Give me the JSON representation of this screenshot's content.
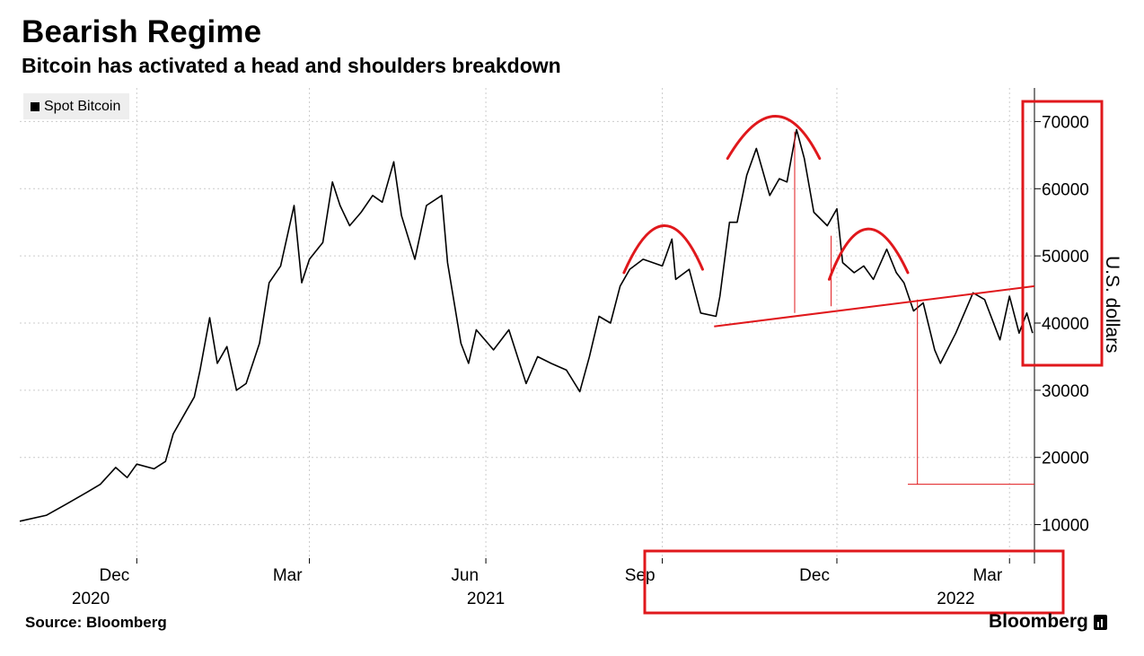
{
  "header": {
    "title": "Bearish Regime",
    "subtitle": "Bitcoin has activated a head and shoulders breakdown"
  },
  "footer": {
    "source": "Source: Bloomberg",
    "brand": "Bloomberg"
  },
  "colors": {
    "price_line": "#000000",
    "annotation": "#e0181c",
    "gridline": "#cccccc",
    "legend_bg": "#eeeeee"
  },
  "chart_data": {
    "type": "line",
    "title": "Bearish Regime",
    "subtitle": "Bitcoin has activated a head and shoulders breakdown",
    "ylabel": "U.S. dollars",
    "xlabel": "",
    "ylim": [
      5000,
      75000
    ],
    "yticks": [
      10000,
      20000,
      30000,
      40000,
      50000,
      60000,
      70000
    ],
    "x_start": "2020-10-01",
    "x_end": "2022-03-14",
    "month_ticks": [
      {
        "label": "Dec",
        "date": "2020-12-01"
      },
      {
        "label": "Mar",
        "date": "2021-03-01"
      },
      {
        "label": "Jun",
        "date": "2021-06-01"
      },
      {
        "label": "Sep",
        "date": "2021-09-01"
      },
      {
        "label": "Dec",
        "date": "2021-12-01"
      },
      {
        "label": "Mar",
        "date": "2022-03-01"
      }
    ],
    "year_labels": [
      {
        "label": "2020",
        "date": "2020-11-07"
      },
      {
        "label": "2021",
        "date": "2021-06-01"
      },
      {
        "label": "2022",
        "date": "2022-02-01"
      }
    ],
    "legend": [
      "Spot Bitcoin"
    ],
    "series": [
      {
        "name": "Spot Bitcoin",
        "points": [
          [
            "2020-10-01",
            10500
          ],
          [
            "2020-10-15",
            11400
          ],
          [
            "2020-10-25",
            13000
          ],
          [
            "2020-11-05",
            14800
          ],
          [
            "2020-11-12",
            16000
          ],
          [
            "2020-11-20",
            18500
          ],
          [
            "2020-11-26",
            17000
          ],
          [
            "2020-12-01",
            19000
          ],
          [
            "2020-12-10",
            18300
          ],
          [
            "2020-12-16",
            19400
          ],
          [
            "2020-12-20",
            23500
          ],
          [
            "2020-12-27",
            27000
          ],
          [
            "2020-12-31",
            29000
          ],
          [
            "2021-01-03",
            33000
          ],
          [
            "2021-01-08",
            40800
          ],
          [
            "2021-01-12",
            34000
          ],
          [
            "2021-01-17",
            36500
          ],
          [
            "2021-01-22",
            30000
          ],
          [
            "2021-01-27",
            31000
          ],
          [
            "2021-02-03",
            37000
          ],
          [
            "2021-02-08",
            46000
          ],
          [
            "2021-02-14",
            48500
          ],
          [
            "2021-02-21",
            57500
          ],
          [
            "2021-02-25",
            46000
          ],
          [
            "2021-03-01",
            49500
          ],
          [
            "2021-03-08",
            52000
          ],
          [
            "2021-03-13",
            61000
          ],
          [
            "2021-03-17",
            57500
          ],
          [
            "2021-03-22",
            54500
          ],
          [
            "2021-03-28",
            56500
          ],
          [
            "2021-04-03",
            59000
          ],
          [
            "2021-04-08",
            58000
          ],
          [
            "2021-04-14",
            64000
          ],
          [
            "2021-04-18",
            56000
          ],
          [
            "2021-04-25",
            49500
          ],
          [
            "2021-05-01",
            57500
          ],
          [
            "2021-05-09",
            59000
          ],
          [
            "2021-05-12",
            49000
          ],
          [
            "2021-05-19",
            37000
          ],
          [
            "2021-05-23",
            34000
          ],
          [
            "2021-05-27",
            39000
          ],
          [
            "2021-06-05",
            36000
          ],
          [
            "2021-06-13",
            39000
          ],
          [
            "2021-06-22",
            31000
          ],
          [
            "2021-06-28",
            35000
          ],
          [
            "2021-07-05",
            34000
          ],
          [
            "2021-07-13",
            33000
          ],
          [
            "2021-07-20",
            29800
          ],
          [
            "2021-07-25",
            35000
          ],
          [
            "2021-07-30",
            41000
          ],
          [
            "2021-08-05",
            40000
          ],
          [
            "2021-08-10",
            45500
          ],
          [
            "2021-08-15",
            48000
          ],
          [
            "2021-08-22",
            49500
          ],
          [
            "2021-09-01",
            48500
          ],
          [
            "2021-09-06",
            52500
          ],
          [
            "2021-09-08",
            46500
          ],
          [
            "2021-09-15",
            48000
          ],
          [
            "2021-09-21",
            41500
          ],
          [
            "2021-09-29",
            41000
          ],
          [
            "2021-10-01",
            44000
          ],
          [
            "2021-10-06",
            55000
          ],
          [
            "2021-10-10",
            55000
          ],
          [
            "2021-10-15",
            62000
          ],
          [
            "2021-10-20",
            66000
          ],
          [
            "2021-10-27",
            59000
          ],
          [
            "2021-11-01",
            61500
          ],
          [
            "2021-11-05",
            61000
          ],
          [
            "2021-11-10",
            68800
          ],
          [
            "2021-11-14",
            64500
          ],
          [
            "2021-11-19",
            56500
          ],
          [
            "2021-11-26",
            54500
          ],
          [
            "2021-12-01",
            57000
          ],
          [
            "2021-12-04",
            49000
          ],
          [
            "2021-12-10",
            47500
          ],
          [
            "2021-12-15",
            48500
          ],
          [
            "2021-12-20",
            46500
          ],
          [
            "2021-12-27",
            51000
          ],
          [
            "2022-01-01",
            47500
          ],
          [
            "2022-01-05",
            46000
          ],
          [
            "2022-01-10",
            41800
          ],
          [
            "2022-01-15",
            43000
          ],
          [
            "2022-01-21",
            36000
          ],
          [
            "2022-01-24",
            34000
          ],
          [
            "2022-02-01",
            38500
          ],
          [
            "2022-02-10",
            44500
          ],
          [
            "2022-02-16",
            43500
          ],
          [
            "2022-02-24",
            37500
          ],
          [
            "2022-03-01",
            44000
          ],
          [
            "2022-03-06",
            38500
          ],
          [
            "2022-03-10",
            41500
          ],
          [
            "2022-03-13",
            38500
          ]
        ]
      }
    ],
    "annotations": {
      "neckline": [
        [
          "2021-09-28",
          39500
        ],
        [
          "2022-03-14",
          45500
        ]
      ],
      "left_shoulder_arc": {
        "start": [
          "2021-08-12",
          47500
        ],
        "peak": [
          "2021-09-02",
          54500
        ],
        "end": [
          "2021-09-22",
          48000
        ]
      },
      "head_arc": {
        "start": [
          "2021-10-05",
          64500
        ],
        "peak": [
          "2021-10-31",
          70800
        ],
        "end": [
          "2021-11-22",
          64500
        ]
      },
      "right_shoulder_arc": {
        "start": [
          "2021-11-27",
          46500
        ],
        "peak": [
          "2021-12-16",
          54000
        ],
        "end": [
          "2022-01-07",
          47500
        ]
      },
      "head_measure": {
        "date": "2021-11-09",
        "top": 68500,
        "bottom": 41500
      },
      "right_shoulder_measure": {
        "date": "2021-11-28",
        "top": 53000,
        "bottom": 42500
      },
      "target_drop": {
        "date": "2022-01-12",
        "top": 43500,
        "bottom": 16000
      },
      "target_level": {
        "from": "2022-01-07",
        "to": "2022-03-14",
        "value": 16000
      }
    },
    "highlight_boxes": [
      {
        "label": "y-axis price range highlight"
      },
      {
        "label": "x-axis date range highlight"
      }
    ]
  }
}
